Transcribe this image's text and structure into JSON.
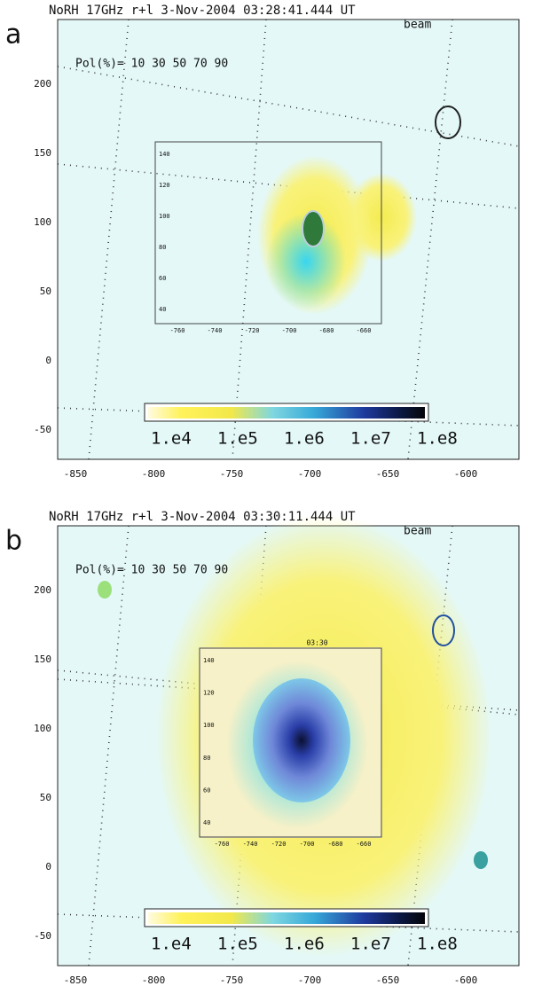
{
  "panels": [
    {
      "label": "a",
      "title": "NoRH 17GHz r+l  3-Nov-2004 03:28:41.444 UT",
      "pol": "Pol(%)= 10 30 50 70 90",
      "beam": "beam"
    },
    {
      "label": "b",
      "title": "NoRH 17GHz r+l  3-Nov-2004 03:30:11.444 UT",
      "pol": "Pol(%)= 10 30 50 70 90",
      "beam": "beam",
      "inset_time": "03:30"
    }
  ],
  "axes": {
    "y_ticks": [
      "200",
      "150",
      "100",
      "50",
      "0",
      "-50"
    ],
    "x_ticks": [
      "-850",
      "-800",
      "-750",
      "-700",
      "-650",
      "-600"
    ],
    "inset_y_ticks": [
      "140",
      "120",
      "100",
      "80",
      "60",
      "40"
    ],
    "inset_x_ticks": [
      "-760",
      "-740",
      "-720",
      "-700",
      "-680",
      "-660"
    ],
    "colorbar_ticks": [
      "1.e4",
      "1.e5",
      "1.e6",
      "1.e7",
      "1.e8"
    ]
  }
}
